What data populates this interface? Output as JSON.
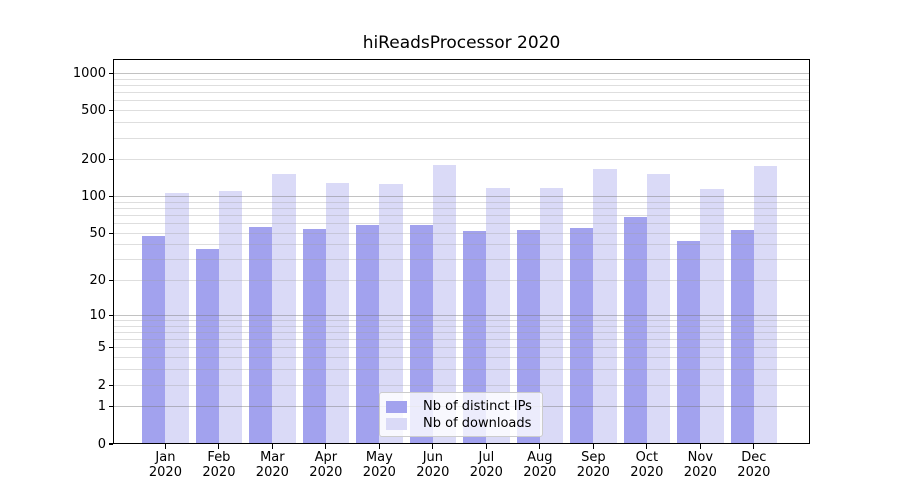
{
  "chart_data": {
    "type": "bar",
    "title": "hiReadsProcessor 2020",
    "categories": [
      "Jan 2020",
      "Feb 2020",
      "Mar 2020",
      "Apr 2020",
      "May 2020",
      "Jun 2020",
      "Jul 2020",
      "Aug 2020",
      "Sep 2020",
      "Oct 2020",
      "Nov 2020",
      "Dec 2020"
    ],
    "series": [
      {
        "name": "Nb of distinct IPs",
        "color": "#a2a2ee",
        "values": [
          47,
          37,
          56,
          54,
          59,
          58,
          52,
          53,
          55,
          68,
          43,
          53
        ]
      },
      {
        "name": "Nb of downloads",
        "color": "#dadaf7",
        "values": [
          106,
          112,
          154,
          128,
          127,
          180,
          117,
          117,
          168,
          154,
          116,
          178
        ]
      }
    ],
    "xlabel": "",
    "ylabel": "",
    "yscale": "log1p",
    "yticks": [
      0,
      1,
      2,
      5,
      10,
      20,
      50,
      100,
      200,
      500,
      1000
    ],
    "ylim": [
      0,
      1312
    ],
    "grid": true,
    "major_grid_values": [
      1,
      10,
      100,
      1000
    ],
    "minor_grid_values": [
      2,
      3,
      4,
      5,
      6,
      7,
      8,
      9,
      20,
      30,
      40,
      50,
      60,
      70,
      80,
      90,
      200,
      300,
      400,
      500,
      600,
      700,
      800,
      900
    ],
    "legend_position": "lower center",
    "colors": {
      "major_grid": "rgba(120,120,120,0.45)",
      "minor_grid": "rgba(160,160,160,0.35)",
      "axis": "#000000",
      "text": "#000000",
      "background": "#ffffff"
    }
  }
}
